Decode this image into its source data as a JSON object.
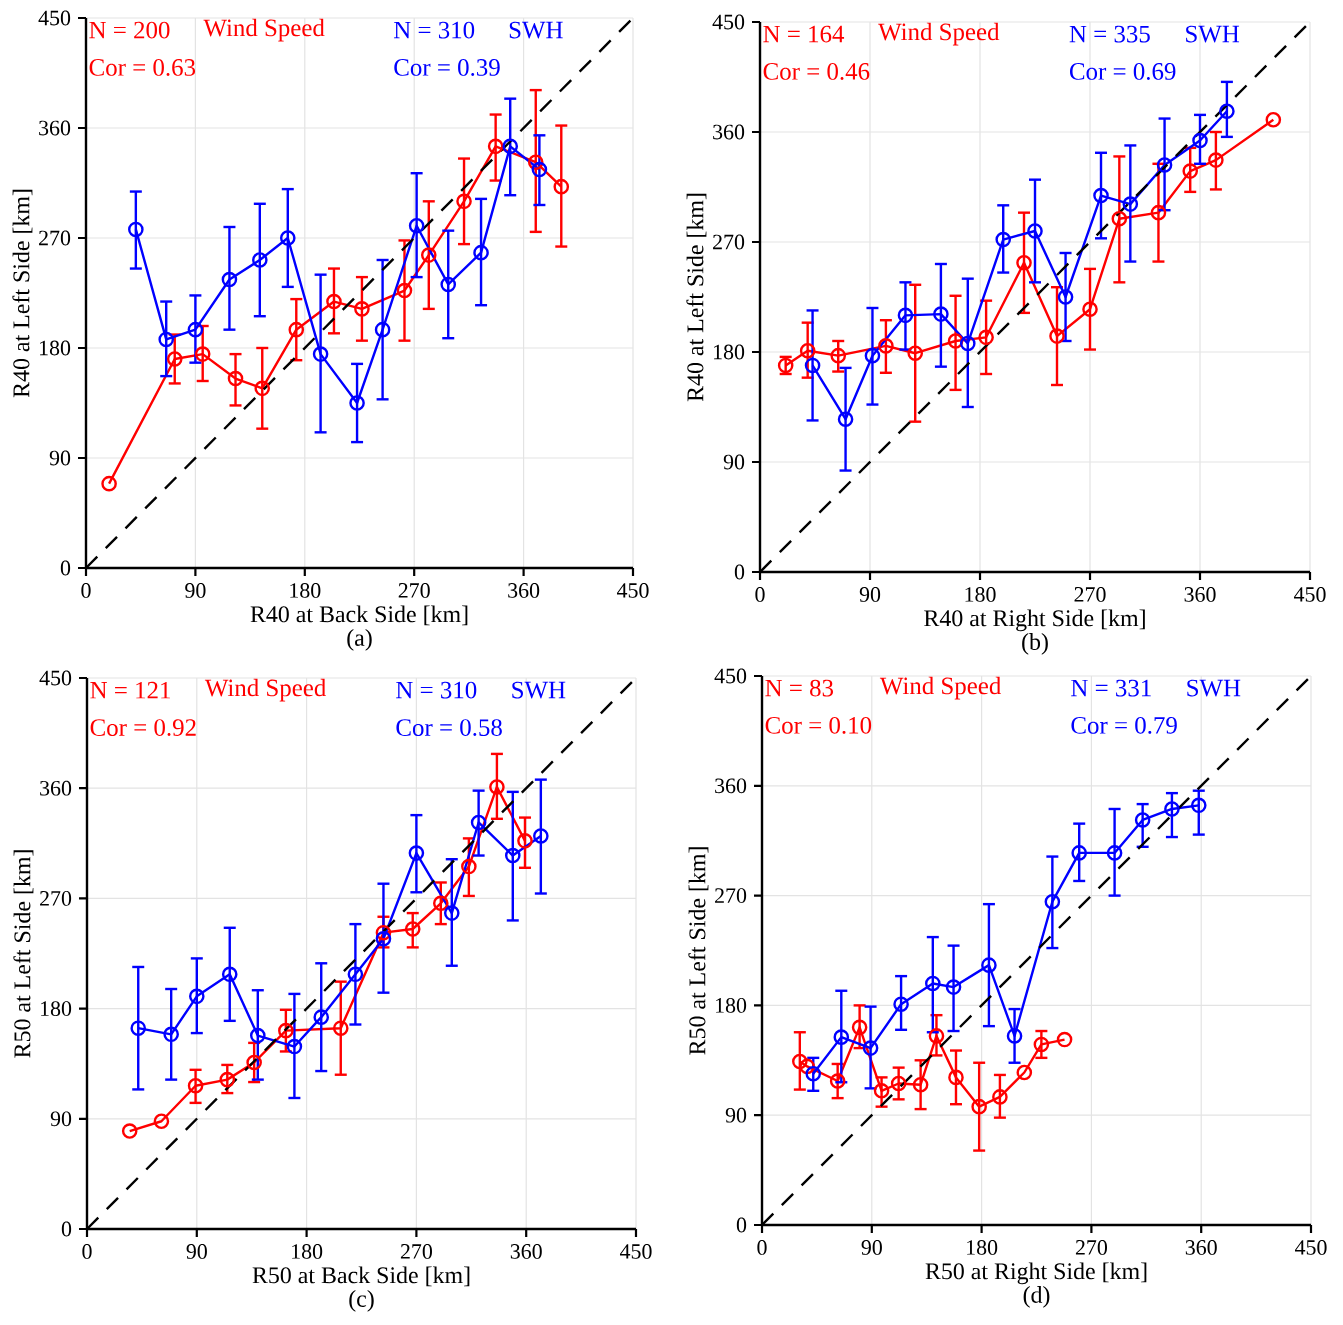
{
  "chart_data": [
    {
      "type": "line",
      "title": "(a)",
      "xlabel": "R40 at Back Side [km]",
      "ylabel": "R40 at Left Side [km]",
      "xlim": [
        0,
        450
      ],
      "ylim": [
        0,
        450
      ],
      "xticks": [
        0,
        90,
        180,
        270,
        360,
        450
      ],
      "yticks": [
        0,
        90,
        180,
        270,
        360,
        450
      ],
      "grid": true,
      "marker": "circle",
      "annotations": [
        "N = 200",
        "Cor = 0.63",
        "N = 310",
        "Cor = 0.39"
      ],
      "series": [
        {
          "name": "Wind Speed",
          "color": "#ff0000",
          "x": [
            19,
            73,
            96,
            123,
            145,
            173,
            204,
            227,
            262,
            282,
            311,
            337,
            370,
            391
          ],
          "values": [
            69,
            171,
            175,
            155,
            147,
            195,
            218,
            212,
            227,
            256,
            300,
            345,
            332,
            312
          ],
          "errors": [
            null,
            [
              151,
              191
            ],
            [
              153,
              198
            ],
            [
              133,
              175
            ],
            [
              114,
              180
            ],
            [
              170,
              220
            ],
            [
              192,
              245
            ],
            [
              186,
              238
            ],
            [
              186,
              268
            ],
            [
              212,
              300
            ],
            [
              265,
              335
            ],
            [
              317,
              371
            ],
            [
              275,
              391
            ],
            [
              263,
              362
            ]
          ]
        },
        {
          "name": "SWH",
          "color": "#0000ff",
          "x": [
            41,
            66,
            90,
            118,
            143,
            166,
            193,
            223,
            244,
            272,
            298,
            325,
            349,
            373
          ],
          "values": [
            277,
            187,
            195,
            236,
            252,
            270,
            175,
            135,
            195,
            280,
            232,
            258,
            345,
            326
          ],
          "errors": [
            [
              245,
              308
            ],
            [
              157,
              218
            ],
            [
              168,
              223
            ],
            [
              195,
              279
            ],
            [
              206,
              298
            ],
            [
              230,
              310
            ],
            [
              111,
              240
            ],
            [
              103,
              167
            ],
            [
              138,
              252
            ],
            [
              238,
              323
            ],
            [
              188,
              276
            ],
            [
              215,
              302
            ],
            [
              305,
              384
            ],
            [
              297,
              354
            ]
          ]
        },
        {
          "type": "line",
          "color": "#000000",
          "x": [
            0,
            450
          ],
          "values": [
            0,
            450
          ],
          "line_style": "dashed",
          "marker": "none"
        }
      ]
    },
    {
      "type": "line",
      "title": "(b)",
      "xlabel": "R40 at Right Side [km]",
      "ylabel": "R40 at Left Side [km]",
      "xlim": [
        0,
        450
      ],
      "ylim": [
        0,
        450
      ],
      "xticks": [
        0,
        90,
        180,
        270,
        360,
        450
      ],
      "yticks": [
        0,
        90,
        180,
        270,
        360,
        450
      ],
      "grid": true,
      "marker": "circle",
      "annotations": [
        "N = 164",
        "Cor = 0.46",
        "N = 335",
        "Cor = 0.69"
      ],
      "series": [
        {
          "name": "Wind Speed",
          "color": "#ff0000",
          "x": [
            21,
            39,
            64,
            103,
            127,
            160,
            185,
            216,
            243,
            270,
            294,
            326,
            352,
            373,
            420
          ],
          "values": [
            169,
            181,
            177,
            185,
            179,
            189,
            192,
            253,
            193,
            215,
            289,
            294,
            328,
            337,
            370
          ],
          "errors": [
            [
              162,
              176
            ],
            [
              159,
              204
            ],
            [
              164,
              189
            ],
            [
              163,
              206
            ],
            [
              123,
              235
            ],
            [
              149,
              226
            ],
            [
              162,
              222
            ],
            [
              212,
              294
            ],
            [
              153,
              233
            ],
            [
              182,
              248
            ],
            [
              237,
              340
            ],
            [
              254,
              334
            ],
            [
              311,
              347
            ],
            [
              313,
              360
            ],
            null
          ]
        },
        {
          "name": "SWH",
          "color": "#0000ff",
          "x": [
            43,
            70,
            92,
            119,
            148,
            170,
            199,
            225,
            250,
            279,
            303,
            331,
            360,
            382
          ],
          "values": [
            169,
            125,
            177,
            210,
            211,
            187,
            272,
            279,
            225,
            308,
            301,
            333,
            353,
            377
          ],
          "errors": [
            [
              124,
              214
            ],
            [
              83,
              167
            ],
            [
              137,
              216
            ],
            [
              182,
              237
            ],
            [
              168,
              252
            ],
            [
              135,
              240
            ],
            [
              245,
              300
            ],
            [
              237,
              321
            ],
            [
              189,
              261
            ],
            [
              273,
              343
            ],
            [
              254,
              349
            ],
            [
              296,
              371
            ],
            [
              334,
              374
            ],
            [
              356,
              401
            ]
          ]
        },
        {
          "type": "line",
          "color": "#000000",
          "x": [
            0,
            450
          ],
          "values": [
            0,
            450
          ],
          "line_style": "dashed",
          "marker": "none"
        }
      ]
    },
    {
      "type": "line",
      "title": "(c)",
      "xlabel": "R50 at Back Side [km]",
      "ylabel": "R50 at Left Side [km]",
      "xlim": [
        0,
        450
      ],
      "ylim": [
        0,
        450
      ],
      "xticks": [
        0,
        90,
        180,
        270,
        360,
        450
      ],
      "yticks": [
        0,
        90,
        180,
        270,
        360,
        450
      ],
      "grid": true,
      "marker": "circle",
      "annotations": [
        "N = 121",
        "Cor = 0.92",
        "N = 310",
        "Cor = 0.58"
      ],
      "series": [
        {
          "name": "Wind Speed",
          "color": "#ff0000",
          "x": [
            35,
            61,
            89,
            115,
            137,
            163,
            208,
            243,
            267,
            290,
            313,
            336,
            359
          ],
          "values": [
            80,
            88,
            117,
            122,
            136,
            162,
            164,
            242,
            245,
            266,
            296,
            361,
            317
          ],
          "errors": [
            null,
            null,
            [
              103,
              130
            ],
            [
              111,
              134
            ],
            [
              120,
              152
            ],
            [
              145,
              179
            ],
            [
              126,
              202
            ],
            [
              230,
              255
            ],
            [
              230,
              258
            ],
            [
              249,
              283
            ],
            [
              272,
              319
            ],
            [
              335,
              388
            ],
            [
              295,
              336
            ]
          ]
        },
        {
          "name": "SWH",
          "color": "#0000ff",
          "x": [
            42,
            69,
            90,
            117,
            140,
            170,
            192,
            220,
            243,
            270,
            299,
            321,
            349,
            372
          ],
          "values": [
            164,
            159,
            190,
            208,
            158,
            149,
            173,
            208,
            237,
            307,
            258,
            332,
            305,
            321
          ],
          "errors": [
            [
              114,
              214
            ],
            [
              122,
              196
            ],
            [
              160,
              221
            ],
            [
              170,
              246
            ],
            [
              122,
              195
            ],
            [
              107,
              192
            ],
            [
              129,
              217
            ],
            [
              167,
              249
            ],
            [
              193,
              282
            ],
            [
              275,
              338
            ],
            [
              215,
              302
            ],
            [
              305,
              358
            ],
            [
              252,
              357
            ],
            [
              274,
              367
            ]
          ]
        },
        {
          "type": "line",
          "color": "#000000",
          "x": [
            0,
            450
          ],
          "values": [
            0,
            450
          ],
          "line_style": "dashed",
          "marker": "none"
        }
      ]
    },
    {
      "type": "line",
      "title": "(d)",
      "xlabel": "R50 at Right Side [km]",
      "ylabel": "R50 at Left Side [km]",
      "xlim": [
        0,
        450
      ],
      "ylim": [
        0,
        450
      ],
      "xticks": [
        0,
        90,
        180,
        270,
        360,
        450
      ],
      "yticks": [
        0,
        90,
        180,
        270,
        360,
        450
      ],
      "grid": true,
      "marker": "circle",
      "annotations": [
        "N = 83",
        "Cor = 0.10",
        "N = 331",
        "Cor = 0.79"
      ],
      "series": [
        {
          "name": "Wind Speed",
          "color": "#ff0000",
          "x": [
            31,
            37,
            62,
            80,
            98,
            112,
            130,
            143,
            159,
            178,
            195,
            215,
            229,
            248
          ],
          "values": [
            134,
            130,
            118,
            162,
            110,
            116,
            115,
            155,
            121,
            97,
            105,
            125,
            148,
            152
          ],
          "errors": [
            [
              111,
              158
            ],
            null,
            [
              104,
              132
            ],
            [
              145,
              180
            ],
            [
              97,
              121
            ],
            [
              103,
              129
            ],
            [
              95,
              135
            ],
            [
              139,
              172
            ],
            [
              99,
              143
            ],
            [
              61,
              133
            ],
            [
              88,
              123
            ],
            null,
            [
              137,
              159
            ],
            null
          ]
        },
        {
          "name": "SWH",
          "color": "#0000ff",
          "x": [
            42,
            65,
            89,
            114,
            140,
            157,
            186,
            207,
            238,
            260,
            289,
            312,
            336,
            358
          ],
          "values": [
            124,
            154,
            145,
            181,
            198,
            195,
            213,
            155,
            265,
            305,
            305,
            332,
            341,
            344
          ],
          "errors": [
            [
              110,
              137
            ],
            [
              117,
              192
            ],
            [
              112,
              179
            ],
            [
              160,
              204
            ],
            [
              158,
              236
            ],
            [
              159,
              229
            ],
            [
              163,
              263
            ],
            [
              133,
              177
            ],
            [
              227,
              302
            ],
            [
              282,
              329
            ],
            [
              270,
              341
            ],
            [
              310,
              345
            ],
            [
              318,
              354
            ],
            [
              320,
              356
            ]
          ]
        },
        {
          "type": "line",
          "color": "#000000",
          "x": [
            0,
            450
          ],
          "values": [
            0,
            450
          ],
          "line_style": "dashed",
          "marker": "none"
        }
      ]
    }
  ]
}
